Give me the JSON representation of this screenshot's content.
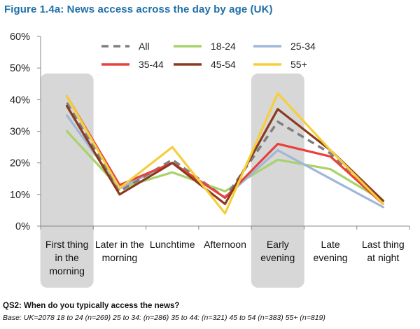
{
  "chart_data": {
    "type": "line",
    "title": "Figure 1.4a: News access across the day by age (UK)",
    "categories": [
      "First thing in the morning",
      "Later in the morning",
      "Lunchtime",
      "Afternoon",
      "Early evening",
      "Late evening",
      "Last thing at night"
    ],
    "category_lines": [
      [
        "First thing",
        "in the",
        "morning"
      ],
      [
        "Later in the",
        "morning"
      ],
      [
        "Lunchtime"
      ],
      [
        "Afternoon"
      ],
      [
        "Early",
        "evening"
      ],
      [
        "Late",
        "evening"
      ],
      [
        "Last thing",
        "at night"
      ]
    ],
    "ylim": [
      0,
      60
    ],
    "yticks": [
      0,
      10,
      20,
      30,
      40,
      50,
      60
    ],
    "ytick_labels": [
      "0%",
      "10%",
      "20%",
      "30%",
      "40%",
      "50%",
      "60%"
    ],
    "highlighted_categories": [
      0,
      4
    ],
    "legend_position": "top",
    "series": [
      {
        "name": "All",
        "color": "#7f7f7f",
        "dashed": true,
        "values": [
          39,
          11,
          21,
          9,
          33,
          23,
          8
        ]
      },
      {
        "name": "18-24",
        "color": "#a8d26a",
        "dashed": false,
        "values": [
          30,
          12,
          17,
          11,
          21,
          18,
          8
        ]
      },
      {
        "name": "25-34",
        "color": "#9fb7d8",
        "dashed": false,
        "values": [
          35,
          12,
          20,
          9,
          24,
          15,
          6
        ]
      },
      {
        "name": "35-44",
        "color": "#e8413b",
        "dashed": false,
        "values": [
          41,
          13,
          20,
          9,
          26,
          22,
          7
        ]
      },
      {
        "name": "45-54",
        "color": "#8b3a1e",
        "dashed": false,
        "values": [
          38,
          10,
          20,
          7,
          37,
          24,
          8
        ]
      },
      {
        "name": "55+",
        "color": "#f5cf3a",
        "dashed": false,
        "values": [
          41,
          12,
          25,
          4,
          42,
          24,
          7
        ]
      }
    ]
  },
  "footer": {
    "question": "QS2: When do you typically access the news?",
    "base": "Base: UK=2078 18 to 24 (n=269) 25 to 34: (n=286) 35 to 44: (n=321) 45 to 54 (n=383) 55+ (n=819)"
  }
}
